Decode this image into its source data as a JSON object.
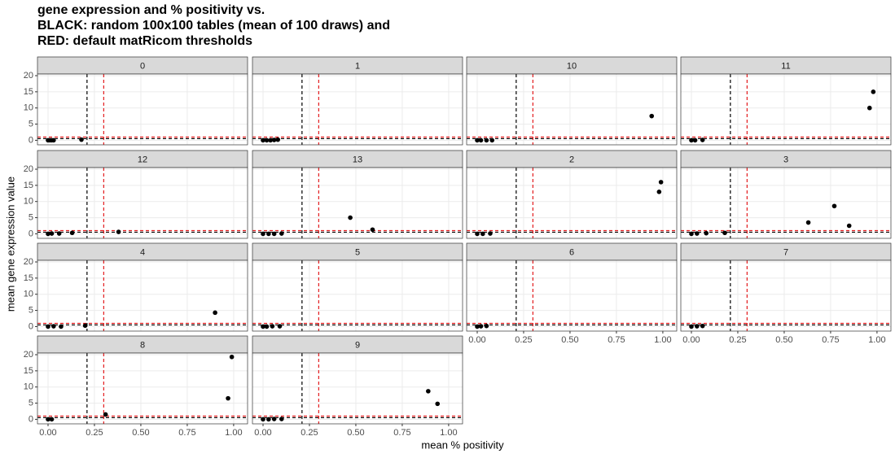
{
  "chart_data": {
    "type": "scatter",
    "title": [
      "gene expression and % positivity vs.",
      "BLACK: random 100x100 tables (mean of 100 draws) and",
      "RED: default matRicom thresholds"
    ],
    "x_label": "mean % positivity",
    "y_label": "mean gene expression value",
    "xlim": [
      -0.057,
      1.075
    ],
    "ylim": [
      -1.4,
      20.5
    ],
    "xticks": [
      {
        "value": 0,
        "label": "0.00"
      },
      {
        "value": 0.25,
        "label": "0.25"
      },
      {
        "value": 0.5,
        "label": "0.50"
      },
      {
        "value": 0.75,
        "label": "0.75"
      },
      {
        "value": 1,
        "label": "1.00"
      }
    ],
    "yticks": [
      0,
      5,
      10,
      15,
      20
    ],
    "grid": true,
    "point_color": "#000000",
    "vlines": [
      {
        "value": 0.21,
        "color": "#000000"
      },
      {
        "value": 0.3,
        "color": "#e41a1c"
      }
    ],
    "hlines": [
      {
        "value": 0.5,
        "color": "#000000"
      },
      {
        "value": 1,
        "color": "#e41a1c"
      }
    ],
    "panels": [
      {
        "title": "0",
        "x": [
          0,
          0.01,
          0.02,
          0.03,
          0.18
        ],
        "y": [
          0,
          0,
          0,
          0,
          0.2
        ]
      },
      {
        "title": "1",
        "x": [
          0,
          0.02,
          0.04,
          0.06,
          0.08
        ],
        "y": [
          0,
          0,
          0,
          0.1,
          0.2
        ]
      },
      {
        "title": "10",
        "x": [
          0,
          0.02,
          0.05,
          0.08,
          0.94
        ],
        "y": [
          0,
          0,
          0,
          0,
          7.5
        ]
      },
      {
        "title": "11",
        "x": [
          0,
          0.02,
          0.06,
          0.96,
          0.98
        ],
        "y": [
          0,
          0,
          0.1,
          10,
          15
        ]
      },
      {
        "title": "12",
        "x": [
          0,
          0.02,
          0.06,
          0.13,
          0.38
        ],
        "y": [
          0,
          0.1,
          0.1,
          0.3,
          0.6
        ]
      },
      {
        "title": "13",
        "x": [
          0,
          0.03,
          0.06,
          0.1,
          0.47,
          0.59
        ],
        "y": [
          0,
          0,
          0,
          0.1,
          5,
          1.3
        ]
      },
      {
        "title": "2",
        "x": [
          0,
          0.03,
          0.07,
          0.98,
          0.99
        ],
        "y": [
          0,
          0,
          0.1,
          13,
          16
        ]
      },
      {
        "title": "3",
        "x": [
          0,
          0.03,
          0.08,
          0.18,
          0.63,
          0.77,
          0.85
        ],
        "y": [
          0,
          0.1,
          0.2,
          0.3,
          3.5,
          8.6,
          2.5
        ]
      },
      {
        "title": "4",
        "x": [
          0,
          0.03,
          0.07,
          0.2,
          0.9
        ],
        "y": [
          0,
          0.1,
          0,
          0.3,
          4.3
        ]
      },
      {
        "title": "5",
        "x": [
          0,
          0.02,
          0.05,
          0.09
        ],
        "y": [
          0,
          0,
          0.1,
          0.1
        ]
      },
      {
        "title": "6",
        "x": [
          0,
          0.02,
          0.05
        ],
        "y": [
          0,
          0.1,
          0.2
        ]
      },
      {
        "title": "7",
        "x": [
          0,
          0.03,
          0.06
        ],
        "y": [
          0,
          0.1,
          0.2
        ]
      },
      {
        "title": "8",
        "x": [
          0,
          0.02,
          0.31,
          0.97,
          0.99
        ],
        "y": [
          0,
          0,
          1.5,
          6.5,
          19.3
        ]
      },
      {
        "title": "9",
        "x": [
          0,
          0.03,
          0.06,
          0.1,
          0.89,
          0.94
        ],
        "y": [
          0,
          0,
          0.1,
          0.1,
          8.7,
          4.8
        ]
      }
    ]
  }
}
